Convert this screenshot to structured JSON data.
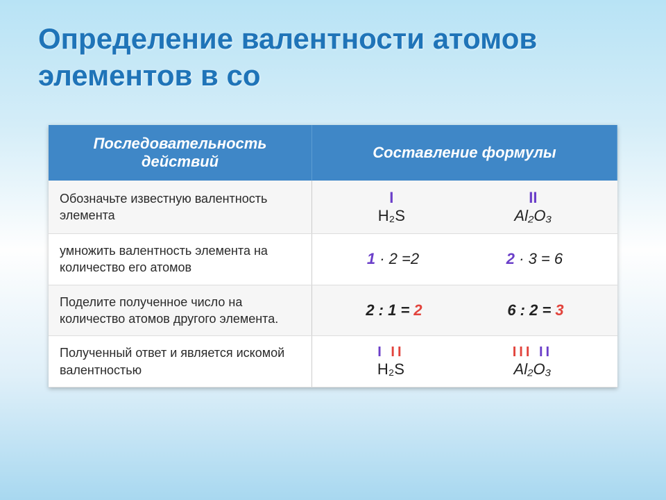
{
  "title": "Определение валентности атомов элементов в со",
  "header": {
    "left": "Последовательность действий",
    "right": "Составление формулы"
  },
  "rows": [
    {
      "label": "Обозначьте известную валентность элемента",
      "left_val": "I",
      "left_formula": "H₂S",
      "right_val": "II",
      "right_formula": "Al₂O₃"
    },
    {
      "label": "умножить валентность элемента на количество его атомов",
      "left_eq_a": "1",
      "left_eq_b": " · 2 =2",
      "right_eq_a": "2",
      "right_eq_b": " · 3 = 6"
    },
    {
      "label": "Поделите полученное число на количество атомов другого элемента.",
      "left_div_a": "2 : 1 = ",
      "left_div_r": "2",
      "right_div_a": "6 : 2 = ",
      "right_div_r": "3"
    },
    {
      "label": "Полученный ответ и является искомой валентностью",
      "left_v1": "I",
      "left_v2": "II",
      "left_f": "H₂S",
      "right_v1": "III",
      "right_v2": "II",
      "right_f": "Al₂O₃"
    }
  ],
  "colors": {
    "header_bg": "#3f87c7",
    "title_color": "#1f74b8",
    "purple": "#6b3fc9",
    "red": "#e2443d"
  }
}
